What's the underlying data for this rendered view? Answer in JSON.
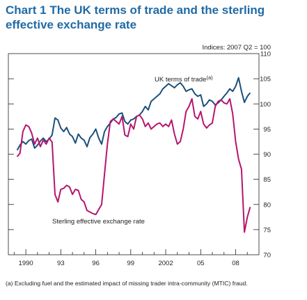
{
  "header": {
    "chart_label": "Chart 1",
    "title": "The UK terms of trade and the sterling effective exchange rate"
  },
  "units_note": "Indices: 2007 Q2 = 100",
  "footnote": "(a) Excluding fuel and the estimated impact of missing trader intra-community (MTIC) fraud.",
  "colors": {
    "title": "#1f6aa5",
    "terms_of_trade": "#1c4f7c",
    "sterling_eer": "#b5156e"
  },
  "chart_data": {
    "type": "line",
    "title": "The UK terms of trade and the sterling effective exchange rate",
    "xlabel": "",
    "ylabel": "Indices: 2007 Q2 = 100",
    "x_tick_labels": [
      "1990",
      "93",
      "96",
      "99",
      "2002",
      "05",
      "08"
    ],
    "x_tick_years": [
      1990,
      1993,
      1996,
      1999,
      2002,
      2005,
      2008
    ],
    "xlim": [
      1988.5,
      2010.0
    ],
    "ylim": [
      70,
      110
    ],
    "y_ticks": [
      70,
      75,
      80,
      85,
      90,
      95,
      100,
      105,
      110
    ],
    "grid": false,
    "series": [
      {
        "name": "UK terms of trade",
        "name_marker": "(a)",
        "color": "#1c4f7c",
        "x": [
          1989.25,
          1989.5,
          1989.75,
          1990.0,
          1990.25,
          1990.5,
          1990.75,
          1991.0,
          1991.25,
          1991.5,
          1991.75,
          1992.0,
          1992.25,
          1992.5,
          1992.75,
          1993.0,
          1993.25,
          1993.5,
          1993.75,
          1994.0,
          1994.25,
          1994.5,
          1994.75,
          1995.0,
          1995.25,
          1995.5,
          1995.75,
          1996.0,
          1996.25,
          1996.5,
          1996.75,
          1997.0,
          1997.25,
          1997.5,
          1997.75,
          1998.0,
          1998.25,
          1998.5,
          1998.75,
          1999.0,
          1999.25,
          1999.5,
          1999.75,
          2000.0,
          2000.25,
          2000.5,
          2000.75,
          2001.0,
          2001.25,
          2001.5,
          2001.75,
          2002.0,
          2002.25,
          2002.5,
          2002.75,
          2003.0,
          2003.25,
          2003.5,
          2003.75,
          2004.0,
          2004.25,
          2004.5,
          2004.75,
          2005.0,
          2005.25,
          2005.5,
          2005.75,
          2006.0,
          2006.25,
          2006.5,
          2006.75,
          2007.0,
          2007.25,
          2007.5,
          2007.75,
          2008.0,
          2008.25,
          2008.5,
          2008.75,
          2009.0,
          2009.25
        ],
        "values": [
          90.8,
          91.8,
          92.5,
          92.0,
          92.7,
          93.0,
          91.2,
          91.8,
          92.6,
          93.2,
          92.5,
          93.0,
          93.8,
          97.2,
          96.8,
          95.2,
          94.5,
          95.3,
          94.0,
          93.5,
          92.2,
          94.0,
          93.2,
          92.8,
          91.5,
          93.3,
          94.0,
          95.0,
          93.2,
          92.0,
          94.5,
          95.5,
          96.2,
          97.0,
          97.3,
          98.0,
          98.2,
          96.5,
          96.0,
          96.8,
          97.0,
          97.5,
          97.8,
          98.5,
          99.5,
          98.8,
          100.5,
          101.0,
          101.5,
          102.0,
          103.0,
          103.5,
          104.0,
          103.6,
          103.2,
          103.8,
          104.2,
          103.5,
          102.5,
          102.8,
          103.0,
          102.0,
          101.5,
          101.8,
          99.5,
          100.0,
          100.8,
          100.5,
          99.8,
          100.2,
          100.8,
          101.5,
          102.2,
          103.0,
          102.5,
          103.5,
          105.2,
          102.5,
          100.3,
          101.5,
          102.2
        ]
      },
      {
        "name": "Sterling effective exchange rate",
        "color": "#b5156e",
        "x": [
          1989.25,
          1989.5,
          1989.75,
          1990.0,
          1990.25,
          1990.5,
          1990.75,
          1991.0,
          1991.25,
          1991.5,
          1991.75,
          1992.0,
          1992.25,
          1992.5,
          1992.75,
          1993.0,
          1993.25,
          1993.5,
          1993.75,
          1994.0,
          1994.25,
          1994.5,
          1994.75,
          1995.0,
          1995.25,
          1995.5,
          1995.75,
          1996.0,
          1996.25,
          1996.5,
          1996.75,
          1997.0,
          1997.25,
          1997.5,
          1997.75,
          1998.0,
          1998.25,
          1998.5,
          1998.75,
          1999.0,
          1999.25,
          1999.5,
          1999.75,
          2000.0,
          2000.25,
          2000.5,
          2000.75,
          2001.0,
          2001.25,
          2001.5,
          2001.75,
          2002.0,
          2002.25,
          2002.5,
          2002.75,
          2003.0,
          2003.25,
          2003.5,
          2003.75,
          2004.0,
          2004.25,
          2004.5,
          2004.75,
          2005.0,
          2005.25,
          2005.5,
          2005.75,
          2006.0,
          2006.25,
          2006.5,
          2006.75,
          2007.0,
          2007.25,
          2007.5,
          2007.75,
          2008.0,
          2008.25,
          2008.5,
          2008.75,
          2009.0,
          2009.25
        ],
        "values": [
          89.5,
          90.2,
          94.5,
          95.8,
          95.5,
          94.2,
          92.0,
          93.2,
          91.5,
          92.8,
          92.0,
          93.2,
          92.4,
          82.0,
          80.5,
          83.0,
          83.2,
          83.8,
          83.5,
          82.0,
          83.0,
          82.8,
          81.0,
          80.5,
          78.8,
          78.5,
          78.2,
          78.0,
          79.0,
          80.0,
          86.0,
          92.0,
          96.5,
          97.0,
          96.5,
          96.0,
          97.5,
          93.8,
          93.5,
          96.0,
          95.0,
          97.5,
          97.8,
          97.0,
          95.5,
          96.2,
          95.0,
          95.5,
          96.0,
          96.2,
          95.5,
          96.0,
          95.5,
          96.8,
          94.0,
          92.0,
          92.5,
          95.0,
          98.5,
          99.5,
          101.0,
          97.5,
          97.0,
          98.5,
          96.0,
          95.2,
          95.8,
          96.2,
          99.5,
          100.5,
          100.8,
          100.2,
          100.0,
          101.0,
          98.0,
          92.5,
          89.0,
          87.0,
          74.5,
          77.5,
          79.5
        ]
      }
    ],
    "annotations": [
      {
        "text": "UK terms of trade",
        "superscript": "(a)",
        "series": 0
      },
      {
        "text": "Sterling effective exchange rate",
        "series": 1
      }
    ]
  }
}
